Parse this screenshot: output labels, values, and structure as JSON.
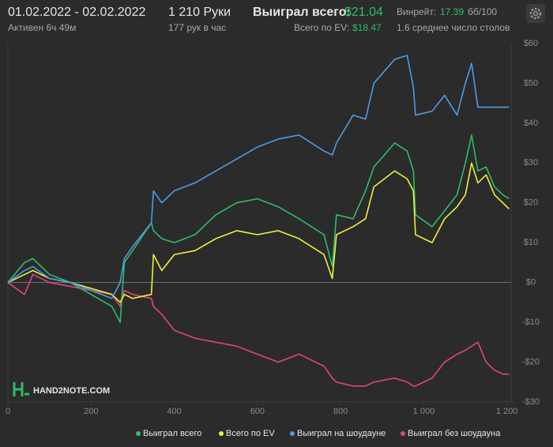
{
  "header": {
    "date_range": "01.02.2022 - 02.02.2022",
    "active": "Активен 6ч 49м",
    "hands": "1 210 Руки",
    "hands_per_hour": "177 рук в час",
    "won_label": "Выиграл всего:",
    "won_value": "$21.04",
    "ev_label": "Всего по EV:",
    "ev_value": "$18.47",
    "winrate_label": "Винрейт:",
    "winrate_value": "17.39",
    "winrate_unit": "бб/100",
    "tables": "1.6 среднее число столов"
  },
  "watermark": "HAND2NOTE.COM",
  "chart_data": {
    "type": "line",
    "x": [
      0,
      40,
      60,
      100,
      150,
      250,
      270,
      280,
      300,
      345,
      350,
      370,
      400,
      450,
      500,
      550,
      600,
      650,
      700,
      760,
      780,
      790,
      830,
      860,
      880,
      930,
      960,
      975,
      980,
      1020,
      1050,
      1080,
      1100,
      1115,
      1130,
      1150,
      1170,
      1190,
      1205
    ],
    "series": [
      {
        "name": "Выиграл всего",
        "color": "#2ebd6b",
        "values": [
          0,
          5,
          6,
          2,
          0,
          -6,
          -10,
          5,
          8,
          15,
          13,
          11,
          10,
          12,
          17,
          20,
          21,
          19,
          16,
          12,
          4,
          17,
          16,
          23,
          29,
          35,
          33,
          28,
          17,
          14,
          18,
          22,
          30,
          37,
          28,
          29,
          24,
          22,
          21.04
        ]
      },
      {
        "name": "Всего по EV",
        "color": "#eef03c",
        "values": [
          0,
          2,
          3,
          1,
          0,
          -3,
          -5,
          -3,
          -4,
          -3,
          7,
          3,
          7,
          8,
          11,
          13,
          12,
          13,
          11,
          7,
          1,
          12,
          14,
          16,
          24,
          28,
          26,
          23,
          12,
          10,
          16,
          19,
          22,
          30,
          25,
          27,
          22,
          20,
          18.47
        ]
      },
      {
        "name": "Выиграл на шоудауне",
        "color": "#4d9be6",
        "values": [
          0,
          3,
          4,
          1,
          0,
          -4,
          0,
          6,
          9,
          15,
          23,
          20,
          23,
          25,
          28,
          31,
          34,
          36,
          37,
          33,
          32,
          35,
          42,
          41,
          50,
          56,
          57,
          49,
          42,
          43,
          47,
          42,
          50,
          55,
          44,
          44,
          44,
          44,
          44
        ]
      },
      {
        "name": "Выиграл без шоудауна",
        "color": "#e0457b",
        "values": [
          0,
          -3,
          2,
          0,
          -1,
          -3,
          -6,
          -2,
          -3,
          -4,
          -6,
          -8,
          -12,
          -14,
          -15,
          -16,
          -18,
          -20,
          -18,
          -21,
          -24,
          -25,
          -26,
          -26,
          -25,
          -24,
          -25,
          -26,
          -26,
          -24,
          -20,
          -18,
          -17,
          -16,
          -15,
          -20,
          -22,
          -23,
          -23
        ]
      }
    ],
    "xlim": [
      0,
      1210
    ],
    "xticks": [
      0,
      200,
      400,
      600,
      800,
      {
        "value": 1000,
        "label": "1 000"
      },
      {
        "value": 1200,
        "label": "1 200"
      }
    ],
    "ylim": [
      -30,
      60
    ],
    "yticks": [
      {
        "value": -30,
        "label": "-$30"
      },
      {
        "value": -20,
        "label": "-$20"
      },
      {
        "value": -10,
        "label": "-$10"
      },
      {
        "value": 0,
        "label": "$0"
      },
      {
        "value": 10,
        "label": "$10"
      },
      {
        "value": 20,
        "label": "$20"
      },
      {
        "value": 30,
        "label": "$30"
      },
      {
        "value": 40,
        "label": "$40"
      },
      {
        "value": 50,
        "label": "$50"
      },
      {
        "value": 60,
        "label": "$60"
      }
    ],
    "legend": "bottom"
  }
}
